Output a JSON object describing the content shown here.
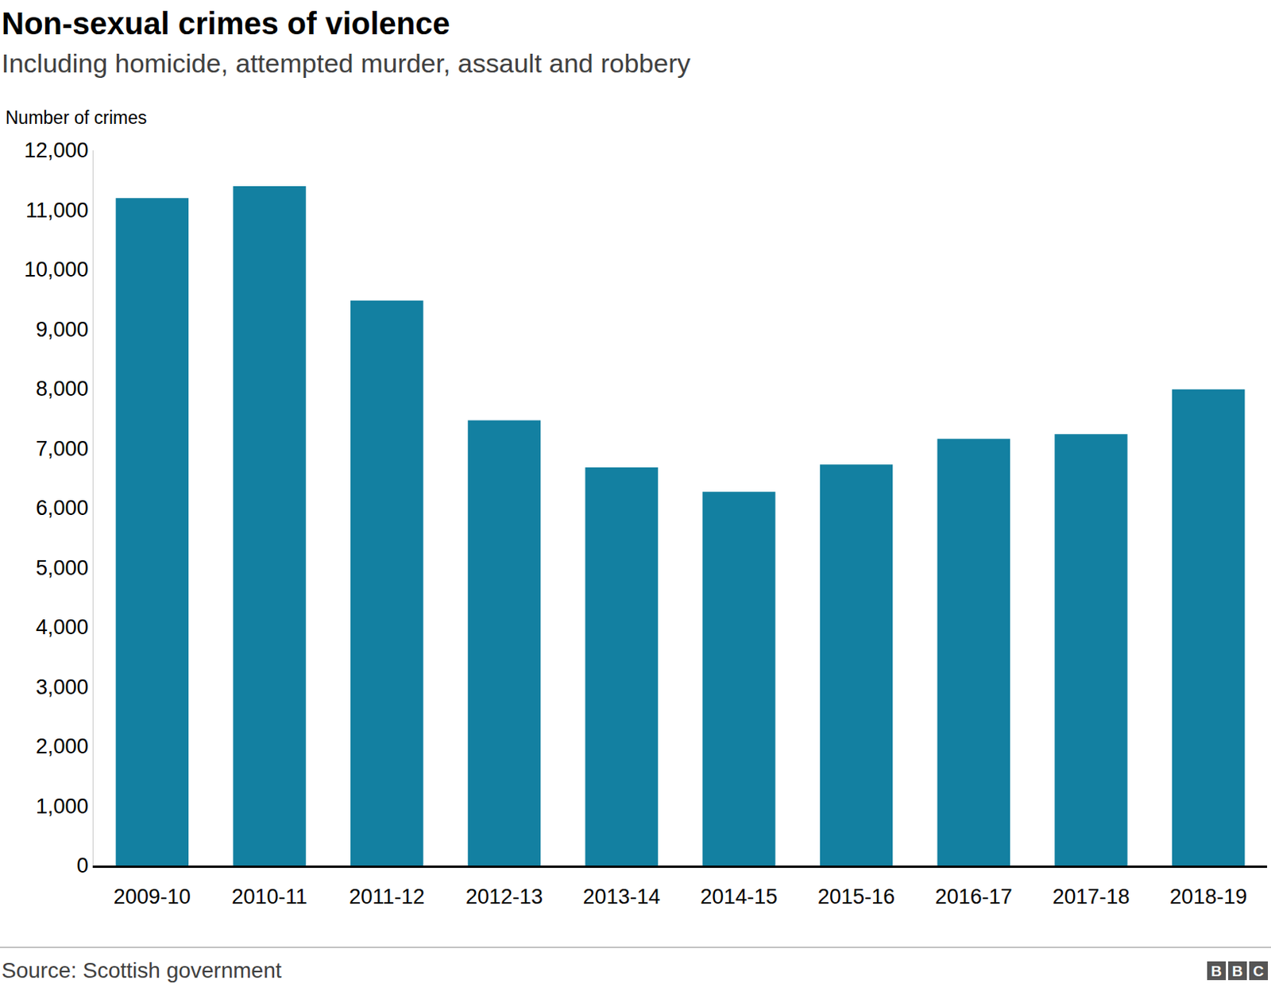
{
  "chart_data": {
    "type": "bar",
    "title": "Non-sexual crimes of violence",
    "subtitle": "Including homicide, attempted murder, assault and robbery",
    "y_label": "Number of crimes",
    "source": "Source: Scottish government",
    "logo": "BBC",
    "categories": [
      "2009-10",
      "2010-11",
      "2011-12",
      "2012-13",
      "2013-14",
      "2014-15",
      "2015-16",
      "2016-17",
      "2017-18",
      "2018-19"
    ],
    "values": [
      11200,
      11400,
      9480,
      7470,
      6680,
      6270,
      6730,
      7160,
      7240,
      7990
    ],
    "color": "#1380a1",
    "ylim": [
      0,
      12000
    ],
    "yticks": [
      0,
      {
        "value": 1000,
        "label": "1,000"
      },
      {
        "value": 2000,
        "label": "2,000"
      },
      {
        "value": 3000,
        "label": "3,000"
      },
      {
        "value": 4000,
        "label": "4,000"
      },
      {
        "value": 5000,
        "label": "5,000"
      },
      {
        "value": 6000,
        "label": "6,000"
      },
      {
        "value": 7000,
        "label": "7,000"
      },
      {
        "value": 8000,
        "label": "8,000"
      },
      {
        "value": 9000,
        "label": "9,000"
      },
      {
        "value": 10000,
        "label": "10,000"
      },
      {
        "value": 11000,
        "label": "11,000"
      },
      {
        "value": 12000,
        "label": "12,000"
      }
    ],
    "grid": false
  }
}
